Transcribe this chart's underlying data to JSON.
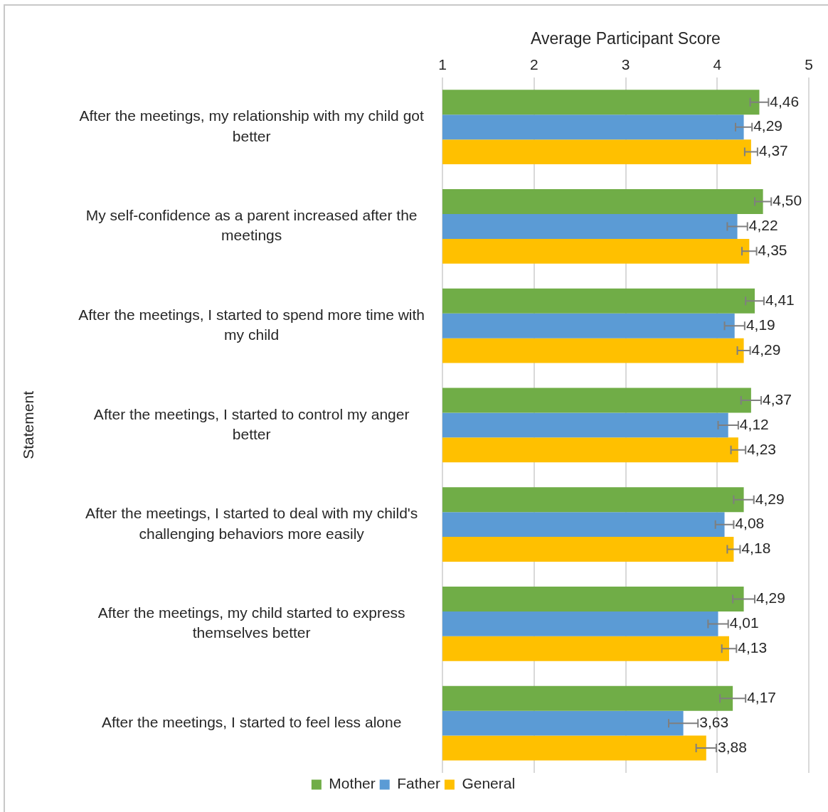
{
  "chart_data": {
    "type": "bar",
    "orientation": "horizontal",
    "xlabel": "Average Participant Score",
    "ylabel": "Statement",
    "categories": [
      "After the meetings, my relationship with my child got better",
      "My self-confidence as a parent increased after the meetings",
      "After the meetings, I started to spend more time with my child",
      "After the meetings, I started to control my anger better",
      "After the meetings, I started to deal with my child's challenging behaviors more easily",
      "After the meetings, my child started to express themselves better",
      "After the meetings, I started to feel less alone"
    ],
    "series": [
      {
        "name": "Mother",
        "color": "#70ad47",
        "values": [
          4.46,
          4.5,
          4.41,
          4.37,
          4.29,
          4.29,
          4.17
        ],
        "errors": [
          0.1,
          0.09,
          0.1,
          0.11,
          0.11,
          0.12,
          0.14
        ],
        "value_labels": [
          "4,46",
          "4,50",
          "4,41",
          "4,37",
          "4,29",
          "4,29",
          "4,17"
        ]
      },
      {
        "name": "Father",
        "color": "#5b9bd5",
        "values": [
          4.29,
          4.22,
          4.19,
          4.12,
          4.08,
          4.01,
          3.63
        ],
        "errors": [
          0.09,
          0.11,
          0.11,
          0.11,
          0.1,
          0.11,
          0.16
        ],
        "value_labels": [
          "4,29",
          "4,22",
          "4,19",
          "4,12",
          "4,08",
          "4,01",
          "3,63"
        ]
      },
      {
        "name": "General",
        "color": "#ffc000",
        "values": [
          4.37,
          4.35,
          4.29,
          4.23,
          4.18,
          4.13,
          3.88
        ],
        "errors": [
          0.07,
          0.08,
          0.07,
          0.08,
          0.07,
          0.08,
          0.11
        ],
        "value_labels": [
          "4,37",
          "4,35",
          "4,29",
          "4,23",
          "4,18",
          "4,13",
          "3,88"
        ]
      }
    ],
    "xlim": [
      1,
      5
    ],
    "xticks": [
      1,
      2,
      3,
      4,
      5
    ],
    "grid": "x",
    "legend": "bottom"
  }
}
